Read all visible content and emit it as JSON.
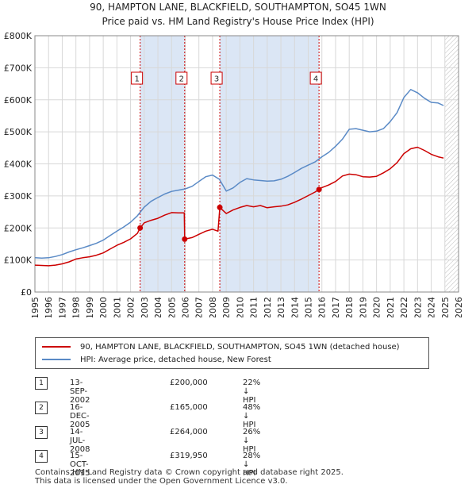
{
  "title_line1": "90, HAMPTON LANE, BLACKFIELD, SOUTHAMPTON, SO45 1WN",
  "title_line2": "Price paid vs. HM Land Registry's House Price Index (HPI)",
  "colors": {
    "property": "#cc0000",
    "hpi": "#5a8ac6",
    "shade": "#dbe6f5",
    "grid": "#d8d8d8"
  },
  "chart_data": {
    "type": "line",
    "xlim": [
      1995,
      2026
    ],
    "ylim": [
      0,
      800000
    ],
    "x_ticks": [
      "1995",
      "1996",
      "1997",
      "1998",
      "1999",
      "2000",
      "2001",
      "2002",
      "2003",
      "2004",
      "2005",
      "2006",
      "2007",
      "2008",
      "2009",
      "2010",
      "2011",
      "2012",
      "2013",
      "2014",
      "2015",
      "2016",
      "2017",
      "2018",
      "2019",
      "2020",
      "2021",
      "2022",
      "2023",
      "2024",
      "2025",
      "2026"
    ],
    "y_ticks": [
      {
        "value": 0,
        "label": "£0"
      },
      {
        "value": 100000,
        "label": "£100K"
      },
      {
        "value": 200000,
        "label": "£200K"
      },
      {
        "value": 300000,
        "label": "£300K"
      },
      {
        "value": 400000,
        "label": "£400K"
      },
      {
        "value": 500000,
        "label": "£500K"
      },
      {
        "value": 600000,
        "label": "£600K"
      },
      {
        "value": 700000,
        "label": "£700K"
      },
      {
        "value": 800000,
        "label": "£800K"
      }
    ],
    "shaded_ranges": [
      [
        2002.7,
        2005.96
      ],
      [
        2008.53,
        2015.79
      ]
    ],
    "hatched_from": 2025.0,
    "series": [
      {
        "name": "90, HAMPTON LANE, BLACKFIELD, SOUTHAMPTON, SO45 1WN (detached house)",
        "color": "#cc0000",
        "points": [
          [
            1995.0,
            84000
          ],
          [
            1995.5,
            83000
          ],
          [
            1996.0,
            82000
          ],
          [
            1996.5,
            84000
          ],
          [
            1997.0,
            88000
          ],
          [
            1997.5,
            94000
          ],
          [
            1998.0,
            103000
          ],
          [
            1998.5,
            107000
          ],
          [
            1999.0,
            110000
          ],
          [
            1999.5,
            115000
          ],
          [
            2000.0,
            122000
          ],
          [
            2000.5,
            134000
          ],
          [
            2001.0,
            146000
          ],
          [
            2001.5,
            155000
          ],
          [
            2002.0,
            166000
          ],
          [
            2002.5,
            183000
          ],
          [
            2002.7,
            200000
          ],
          [
            2003.0,
            216000
          ],
          [
            2003.5,
            224000
          ],
          [
            2004.0,
            230000
          ],
          [
            2004.5,
            240000
          ],
          [
            2005.0,
            248000
          ],
          [
            2005.5,
            247000
          ],
          [
            2005.93,
            247000
          ],
          [
            2005.96,
            165000
          ],
          [
            2006.5,
            170000
          ],
          [
            2007.0,
            180000
          ],
          [
            2007.5,
            190000
          ],
          [
            2008.0,
            196000
          ],
          [
            2008.4,
            190000
          ],
          [
            2008.53,
            264000
          ],
          [
            2009.0,
            245000
          ],
          [
            2009.5,
            256000
          ],
          [
            2010.0,
            264000
          ],
          [
            2010.5,
            270000
          ],
          [
            2011.0,
            266000
          ],
          [
            2011.5,
            270000
          ],
          [
            2012.0,
            263000
          ],
          [
            2012.5,
            266000
          ],
          [
            2013.0,
            268000
          ],
          [
            2013.5,
            272000
          ],
          [
            2014.0,
            280000
          ],
          [
            2014.5,
            290000
          ],
          [
            2015.0,
            301000
          ],
          [
            2015.5,
            312000
          ],
          [
            2015.79,
            319950
          ],
          [
            2016.0,
            326000
          ],
          [
            2016.5,
            334000
          ],
          [
            2017.0,
            345000
          ],
          [
            2017.5,
            362000
          ],
          [
            2018.0,
            368000
          ],
          [
            2018.5,
            366000
          ],
          [
            2019.0,
            360000
          ],
          [
            2019.5,
            359000
          ],
          [
            2020.0,
            361000
          ],
          [
            2020.5,
            372000
          ],
          [
            2021.0,
            385000
          ],
          [
            2021.5,
            404000
          ],
          [
            2022.0,
            432000
          ],
          [
            2022.5,
            447000
          ],
          [
            2023.0,
            452000
          ],
          [
            2023.5,
            442000
          ],
          [
            2024.0,
            430000
          ],
          [
            2024.5,
            422000
          ],
          [
            2024.9,
            418000
          ]
        ]
      },
      {
        "name": "HPI: Average price, detached house, New Forest",
        "color": "#5a8ac6",
        "points": [
          [
            1995.0,
            107000
          ],
          [
            1995.5,
            106000
          ],
          [
            1996.0,
            107000
          ],
          [
            1996.5,
            111000
          ],
          [
            1997.0,
            117000
          ],
          [
            1997.5,
            125000
          ],
          [
            1998.0,
            132000
          ],
          [
            1998.5,
            138000
          ],
          [
            1999.0,
            145000
          ],
          [
            1999.5,
            152000
          ],
          [
            2000.0,
            162000
          ],
          [
            2000.5,
            176000
          ],
          [
            2001.0,
            190000
          ],
          [
            2001.5,
            203000
          ],
          [
            2002.0,
            218000
          ],
          [
            2002.5,
            238000
          ],
          [
            2003.0,
            265000
          ],
          [
            2003.5,
            283000
          ],
          [
            2004.0,
            295000
          ],
          [
            2004.5,
            306000
          ],
          [
            2005.0,
            314000
          ],
          [
            2005.5,
            318000
          ],
          [
            2006.0,
            322000
          ],
          [
            2006.5,
            330000
          ],
          [
            2007.0,
            345000
          ],
          [
            2007.5,
            360000
          ],
          [
            2008.0,
            365000
          ],
          [
            2008.5,
            352000
          ],
          [
            2009.0,
            315000
          ],
          [
            2009.5,
            325000
          ],
          [
            2010.0,
            342000
          ],
          [
            2010.5,
            354000
          ],
          [
            2011.0,
            350000
          ],
          [
            2011.5,
            348000
          ],
          [
            2012.0,
            346000
          ],
          [
            2012.5,
            347000
          ],
          [
            2013.0,
            352000
          ],
          [
            2013.5,
            361000
          ],
          [
            2014.0,
            373000
          ],
          [
            2014.5,
            386000
          ],
          [
            2015.0,
            396000
          ],
          [
            2015.5,
            406000
          ],
          [
            2016.0,
            422000
          ],
          [
            2016.5,
            436000
          ],
          [
            2017.0,
            455000
          ],
          [
            2017.5,
            477000
          ],
          [
            2018.0,
            508000
          ],
          [
            2018.5,
            510000
          ],
          [
            2019.0,
            505000
          ],
          [
            2019.5,
            500000
          ],
          [
            2020.0,
            502000
          ],
          [
            2020.5,
            510000
          ],
          [
            2021.0,
            532000
          ],
          [
            2021.5,
            560000
          ],
          [
            2022.0,
            607000
          ],
          [
            2022.5,
            632000
          ],
          [
            2023.0,
            622000
          ],
          [
            2023.5,
            605000
          ],
          [
            2024.0,
            592000
          ],
          [
            2024.5,
            590000
          ],
          [
            2024.9,
            582000
          ]
        ]
      }
    ],
    "sales": [
      {
        "id": "1",
        "x": 2002.7,
        "price": 200000
      },
      {
        "id": "2",
        "x": 2005.96,
        "price": 165000
      },
      {
        "id": "3",
        "x": 2008.53,
        "price": 264000
      },
      {
        "id": "4",
        "x": 2015.79,
        "price": 319950
      }
    ]
  },
  "legend": {
    "property": "90, HAMPTON LANE, BLACKFIELD, SOUTHAMPTON, SO45 1WN (detached house)",
    "hpi": "HPI: Average price, detached house, New Forest"
  },
  "table": [
    {
      "num": "1",
      "date": "13-SEP-2002",
      "price": "£200,000",
      "hpi": "22% ↓ HPI"
    },
    {
      "num": "2",
      "date": "16-DEC-2005",
      "price": "£165,000",
      "hpi": "48% ↓ HPI"
    },
    {
      "num": "3",
      "date": "14-JUL-2008",
      "price": "£264,000",
      "hpi": "26% ↓ HPI"
    },
    {
      "num": "4",
      "date": "15-OCT-2015",
      "price": "£319,950",
      "hpi": "28% ↓ HPI"
    }
  ],
  "footer": {
    "line1": "Contains HM Land Registry data © Crown copyright and database right 2025.",
    "line2": "This data is licensed under the Open Government Licence v3.0."
  }
}
